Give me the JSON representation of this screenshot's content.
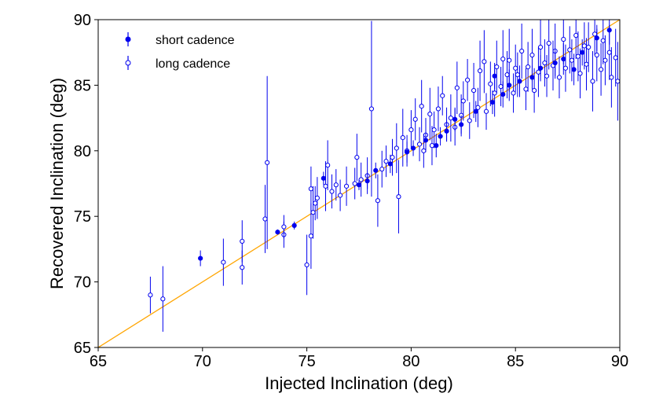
{
  "chart_data": {
    "type": "scatter",
    "xlabel": "Injected Inclination (deg)",
    "ylabel": "Recovered Inclination (deg)",
    "xlim": [
      65,
      90
    ],
    "ylim": [
      65,
      90
    ],
    "xticks": [
      "65",
      "70",
      "75",
      "80",
      "85",
      "90"
    ],
    "yticks": [
      "65",
      "70",
      "75",
      "80",
      "85",
      "90"
    ],
    "grid": false,
    "legend_position": "top-left",
    "reference_line": {
      "from": [
        65,
        65
      ],
      "to": [
        90,
        90
      ],
      "color": "#ffa500"
    },
    "series": [
      {
        "name": "short cadence",
        "marker": "filled",
        "color": "#0000ee",
        "points": [
          [
            69.9,
            71.8,
            0.6
          ],
          [
            73.6,
            73.8,
            0.2
          ],
          [
            74.4,
            74.3,
            0.3
          ],
          [
            75.8,
            77.9,
            0.5
          ],
          [
            77.9,
            77.7,
            0.6
          ],
          [
            77.5,
            77.4,
            0.4
          ],
          [
            80.1,
            80.2,
            0.6
          ],
          [
            81.7,
            81.5,
            0.8
          ],
          [
            82.4,
            82.0,
            0.7
          ],
          [
            83.9,
            83.7,
            0.9
          ],
          [
            84.7,
            85.0,
            1.2
          ],
          [
            85.8,
            85.6,
            0.9
          ],
          [
            86.2,
            86.3,
            1.0
          ],
          [
            87.3,
            87.0,
            1.2
          ],
          [
            88.9,
            88.6,
            1.0
          ],
          [
            89.5,
            89.2,
            1.1
          ],
          [
            88.2,
            87.5,
            1.0
          ],
          [
            86.9,
            86.7,
            1.0
          ],
          [
            85.2,
            85.3,
            1.2
          ],
          [
            84.4,
            84.3,
            1.0
          ],
          [
            83.1,
            83.0,
            0.8
          ],
          [
            82.1,
            82.4,
            0.9
          ],
          [
            81.4,
            81.1,
            0.7
          ],
          [
            79.8,
            79.9,
            0.8
          ],
          [
            79.0,
            79.0,
            0.7
          ],
          [
            78.3,
            78.5,
            0.6
          ],
          [
            81.2,
            80.4,
            0.9
          ],
          [
            80.7,
            80.8,
            0.7
          ],
          [
            84.0,
            85.7,
            1.0
          ],
          [
            87.8,
            86.2,
            1.2
          ]
        ]
      },
      {
        "name": "long cadence",
        "marker": "open",
        "color": "#0000ee",
        "points": [
          [
            67.5,
            69.0,
            1.4
          ],
          [
            68.1,
            68.7,
            2.5
          ],
          [
            71.0,
            71.5,
            1.8
          ],
          [
            71.9,
            71.1,
            1.3
          ],
          [
            71.9,
            73.1,
            1.6
          ],
          [
            73.0,
            74.8,
            2.6
          ],
          [
            73.1,
            79.1,
            6.6
          ],
          [
            73.9,
            73.6,
            1.0
          ],
          [
            73.9,
            74.2,
            0.9
          ],
          [
            75.0,
            71.3,
            2.3
          ],
          [
            75.2,
            73.5,
            2.5
          ],
          [
            75.3,
            75.3,
            2.0
          ],
          [
            75.2,
            77.1,
            1.7
          ],
          [
            75.4,
            76.0,
            1.3
          ],
          [
            75.5,
            76.4,
            1.6
          ],
          [
            75.9,
            77.3,
            1.9
          ],
          [
            76.0,
            78.9,
            1.9
          ],
          [
            76.2,
            76.9,
            1.3
          ],
          [
            76.4,
            77.4,
            1.2
          ],
          [
            76.9,
            77.3,
            1.5
          ],
          [
            76.6,
            76.6,
            1.2
          ],
          [
            77.4,
            79.5,
            1.8
          ],
          [
            77.3,
            77.5,
            1.2
          ],
          [
            77.6,
            77.8,
            1.3
          ],
          [
            77.9,
            78.1,
            1.4
          ],
          [
            78.1,
            83.2,
            6.7
          ],
          [
            78.4,
            76.2,
            2.0
          ],
          [
            78.6,
            78.6,
            1.4
          ],
          [
            78.8,
            79.2,
            1.2
          ],
          [
            79.1,
            79.5,
            1.4
          ],
          [
            79.3,
            80.2,
            1.9
          ],
          [
            79.4,
            76.5,
            2.8
          ],
          [
            79.6,
            81.0,
            2.2
          ],
          [
            79.8,
            80.0,
            1.2
          ],
          [
            80.0,
            81.6,
            1.5
          ],
          [
            80.2,
            82.4,
            1.6
          ],
          [
            80.4,
            80.5,
            1.3
          ],
          [
            80.5,
            83.4,
            2.0
          ],
          [
            80.6,
            80.0,
            1.3
          ],
          [
            80.7,
            81.2,
            1.3
          ],
          [
            80.9,
            82.8,
            2.0
          ],
          [
            81.0,
            80.4,
            1.5
          ],
          [
            81.1,
            81.6,
            1.4
          ],
          [
            81.3,
            83.2,
            1.7
          ],
          [
            81.5,
            84.2,
            1.5
          ],
          [
            81.7,
            82.0,
            1.3
          ],
          [
            81.9,
            82.5,
            1.8
          ],
          [
            82.1,
            81.8,
            1.4
          ],
          [
            82.2,
            84.8,
            2.0
          ],
          [
            82.4,
            82.7,
            1.6
          ],
          [
            82.5,
            83.8,
            1.5
          ],
          [
            82.7,
            85.4,
            1.6
          ],
          [
            82.8,
            82.3,
            1.4
          ],
          [
            83.0,
            84.6,
            2.1
          ],
          [
            83.2,
            83.3,
            1.5
          ],
          [
            83.3,
            86.1,
            2.3
          ],
          [
            83.5,
            86.8,
            2.4
          ],
          [
            83.6,
            83.0,
            1.4
          ],
          [
            83.8,
            85.1,
            1.7
          ],
          [
            84.0,
            84.4,
            1.8
          ],
          [
            84.1,
            86.4,
            2.0
          ],
          [
            84.3,
            84.9,
            1.5
          ],
          [
            84.4,
            87.0,
            2.2
          ],
          [
            84.6,
            85.8,
            1.8
          ],
          [
            84.7,
            86.9,
            2.4
          ],
          [
            84.9,
            84.4,
            1.5
          ],
          [
            85.0,
            86.3,
            1.8
          ],
          [
            85.1,
            85.8,
            1.7
          ],
          [
            85.3,
            87.6,
            2.1
          ],
          [
            85.5,
            84.7,
            1.6
          ],
          [
            85.6,
            86.4,
            1.9
          ],
          [
            85.8,
            87.3,
            2.0
          ],
          [
            85.9,
            84.6,
            1.7
          ],
          [
            86.1,
            86.0,
            1.9
          ],
          [
            86.2,
            87.9,
            2.2
          ],
          [
            86.4,
            86.7,
            1.8
          ],
          [
            86.5,
            85.7,
            1.6
          ],
          [
            86.6,
            88.2,
            2.0
          ],
          [
            86.8,
            86.5,
            1.9
          ],
          [
            86.9,
            87.6,
            2.1
          ],
          [
            87.1,
            85.6,
            1.6
          ],
          [
            87.3,
            88.5,
            1.9
          ],
          [
            87.4,
            86.3,
            1.8
          ],
          [
            87.6,
            87.7,
            1.8
          ],
          [
            87.7,
            86.9,
            1.6
          ],
          [
            87.9,
            88.8,
            1.8
          ],
          [
            88.0,
            87.2,
            1.9
          ],
          [
            88.1,
            85.9,
            1.9
          ],
          [
            88.3,
            88.0,
            1.8
          ],
          [
            88.4,
            86.6,
            2.0
          ],
          [
            88.5,
            87.9,
            1.9
          ],
          [
            88.7,
            85.3,
            2.3
          ],
          [
            88.8,
            88.9,
            1.6
          ],
          [
            88.9,
            87.3,
            2.0
          ],
          [
            89.1,
            86.2,
            2.0
          ],
          [
            89.2,
            88.4,
            1.8
          ],
          [
            89.3,
            86.9,
            1.9
          ],
          [
            89.5,
            87.5,
            2.1
          ],
          [
            89.6,
            85.6,
            2.3
          ],
          [
            89.8,
            87.1,
            2.2
          ],
          [
            89.9,
            85.3,
            3.0
          ]
        ]
      }
    ]
  }
}
